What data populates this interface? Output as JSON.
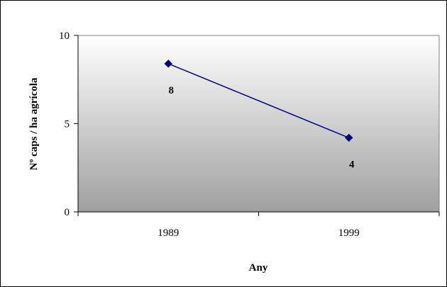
{
  "chart_data": {
    "type": "line",
    "title": "",
    "xlabel": "Any",
    "ylabel": "Nº caps / ha agrícola",
    "categories": [
      "1989",
      "1999"
    ],
    "series": [
      {
        "values": [
          8.4,
          4.2
        ],
        "data_labels": [
          "8",
          "4"
        ],
        "color": "#000080"
      }
    ],
    "ylim": [
      0,
      10
    ],
    "yticks": [
      "0",
      "5",
      "10"
    ],
    "grid": false,
    "legend": "none",
    "colors": {
      "plot_gradient_top": "#ffffff",
      "plot_gradient_bottom": "#a0a0a0",
      "line": "#000080",
      "marker": "#000080"
    }
  }
}
